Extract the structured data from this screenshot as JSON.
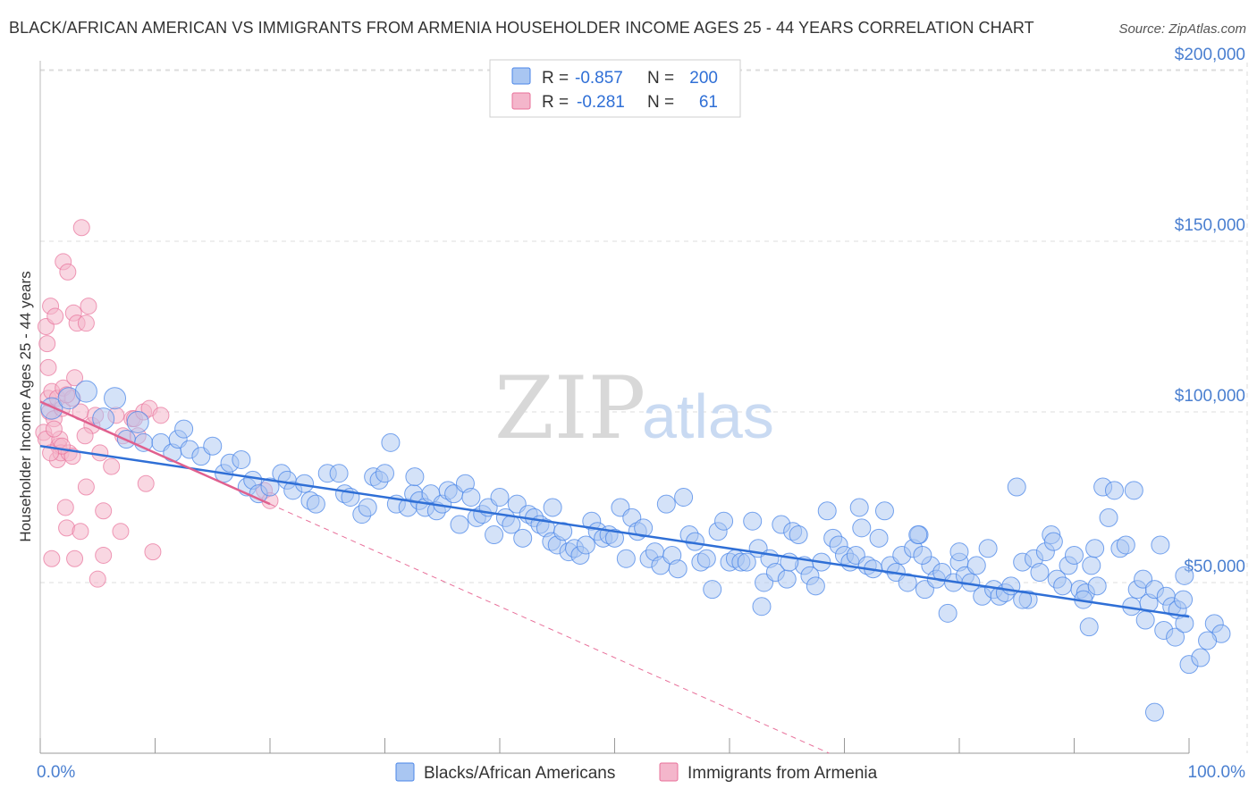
{
  "title": "BLACK/AFRICAN AMERICAN VS IMMIGRANTS FROM ARMENIA HOUSEHOLDER INCOME AGES 25 - 44 YEARS CORRELATION CHART",
  "source": "Source: ZipAtlas.com",
  "watermark": {
    "zip": "ZIP",
    "atlas": "atlas"
  },
  "colors": {
    "blue": "#4a86e8",
    "blue_fill": "#a9c6f2",
    "pink": "#e8709a",
    "pink_fill": "#f4b6cb",
    "grid": "#dcdcdc",
    "axis_text": "#4a7fd0"
  },
  "legend": {
    "rows": [
      {
        "r_label": "R =",
        "r_value": "-0.857",
        "n_label": "N =",
        "n_value": "200"
      },
      {
        "r_label": "R =",
        "r_value": "-0.281",
        "n_label": "N =",
        "n_value": "61"
      }
    ]
  },
  "bottom_legend": [
    "Blacks/African Americans",
    "Immigrants from Armenia"
  ],
  "chart_data": {
    "type": "scatter",
    "title": "BLACK/AFRICAN AMERICAN VS IMMIGRANTS FROM ARMENIA HOUSEHOLDER INCOME AGES 25 - 44 YEARS CORRELATION CHART",
    "xlabel": "",
    "ylabel": "Householder Income Ages 25 - 44 years",
    "xlim": [
      0,
      100
    ],
    "ylim": [
      0,
      210000
    ],
    "x_tick_labels": [
      "0.0%",
      "100.0%"
    ],
    "y_ticks": [
      50000,
      100000,
      150000,
      200000
    ],
    "y_tick_labels": [
      "$50,000",
      "$100,000",
      "$150,000",
      "$200,000"
    ],
    "grid": true,
    "legend_position": "top-center",
    "series": [
      {
        "name": "Blacks/African Americans",
        "color": "#4a86e8",
        "trend": {
          "x": [
            0,
            100
          ],
          "y": [
            90000,
            40000
          ]
        },
        "points": [
          [
            1.0,
            101000
          ],
          [
            2.5,
            104000
          ],
          [
            4.0,
            106000
          ],
          [
            5.5,
            98000
          ],
          [
            6.5,
            104000
          ],
          [
            7.5,
            92000
          ],
          [
            8.5,
            97000
          ],
          [
            9.0,
            91000
          ],
          [
            10.5,
            91000
          ],
          [
            11.5,
            88000
          ],
          [
            12.0,
            92000
          ],
          [
            13.0,
            89000
          ],
          [
            14.0,
            87000
          ],
          [
            15.0,
            90000
          ],
          [
            12.5,
            95000
          ],
          [
            16.0,
            82000
          ],
          [
            16.5,
            85000
          ],
          [
            17.5,
            86000
          ],
          [
            18.0,
            78000
          ],
          [
            18.5,
            80000
          ],
          [
            19.0,
            76000
          ],
          [
            20.0,
            78000
          ],
          [
            21.0,
            82000
          ],
          [
            21.5,
            80000
          ],
          [
            22.0,
            77000
          ],
          [
            23.0,
            79000
          ],
          [
            23.5,
            74000
          ],
          [
            24.0,
            73000
          ],
          [
            25.0,
            82000
          ],
          [
            26.0,
            82000
          ],
          [
            26.5,
            76000
          ],
          [
            27.0,
            75000
          ],
          [
            28.0,
            70000
          ],
          [
            28.5,
            72000
          ],
          [
            29.0,
            81000
          ],
          [
            29.5,
            80000
          ],
          [
            30.0,
            82000
          ],
          [
            30.5,
            91000
          ],
          [
            31.0,
            73000
          ],
          [
            32.0,
            72000
          ],
          [
            32.5,
            76000
          ],
          [
            33.0,
            74000
          ],
          [
            33.5,
            72000
          ],
          [
            34.0,
            76000
          ],
          [
            34.5,
            71000
          ],
          [
            35.0,
            73000
          ],
          [
            35.5,
            77000
          ],
          [
            36.0,
            76000
          ],
          [
            36.5,
            67000
          ],
          [
            37.0,
            79000
          ],
          [
            37.5,
            75000
          ],
          [
            38.0,
            69000
          ],
          [
            38.5,
            70000
          ],
          [
            39.0,
            72000
          ],
          [
            39.5,
            64000
          ],
          [
            40.0,
            75000
          ],
          [
            40.5,
            69000
          ],
          [
            41.0,
            67000
          ],
          [
            41.5,
            73000
          ],
          [
            42.0,
            63000
          ],
          [
            42.5,
            70000
          ],
          [
            43.0,
            69000
          ],
          [
            43.5,
            67000
          ],
          [
            44.0,
            66000
          ],
          [
            44.5,
            62000
          ],
          [
            45.0,
            61000
          ],
          [
            45.5,
            65000
          ],
          [
            46.0,
            59000
          ],
          [
            46.5,
            60000
          ],
          [
            47.0,
            58000
          ],
          [
            47.5,
            61000
          ],
          [
            48.0,
            68000
          ],
          [
            48.5,
            65000
          ],
          [
            49.0,
            63000
          ],
          [
            49.5,
            64000
          ],
          [
            50.0,
            63000
          ],
          [
            50.5,
            72000
          ],
          [
            51.0,
            57000
          ],
          [
            51.5,
            69000
          ],
          [
            52.0,
            65000
          ],
          [
            52.5,
            66000
          ],
          [
            53.0,
            57000
          ],
          [
            53.5,
            59000
          ],
          [
            54.0,
            55000
          ],
          [
            54.5,
            73000
          ],
          [
            55.0,
            58000
          ],
          [
            55.5,
            54000
          ],
          [
            56.0,
            75000
          ],
          [
            56.5,
            64000
          ],
          [
            57.0,
            62000
          ],
          [
            57.5,
            56000
          ],
          [
            58.0,
            57000
          ],
          [
            58.5,
            48000
          ],
          [
            59.0,
            65000
          ],
          [
            59.5,
            68000
          ],
          [
            60.0,
            56000
          ],
          [
            60.5,
            57000
          ],
          [
            61.0,
            56000
          ],
          [
            61.5,
            56000
          ],
          [
            62.0,
            68000
          ],
          [
            62.5,
            60000
          ],
          [
            63.0,
            50000
          ],
          [
            63.5,
            57000
          ],
          [
            64.0,
            53000
          ],
          [
            64.5,
            67000
          ],
          [
            65.0,
            51000
          ],
          [
            65.5,
            65000
          ],
          [
            66.0,
            64000
          ],
          [
            66.5,
            55000
          ],
          [
            67.0,
            52000
          ],
          [
            67.5,
            49000
          ],
          [
            68.0,
            56000
          ],
          [
            68.5,
            71000
          ],
          [
            69.0,
            63000
          ],
          [
            69.5,
            61000
          ],
          [
            70.0,
            58000
          ],
          [
            70.5,
            56000
          ],
          [
            71.0,
            58000
          ],
          [
            71.5,
            66000
          ],
          [
            72.0,
            55000
          ],
          [
            72.5,
            54000
          ],
          [
            73.0,
            63000
          ],
          [
            73.5,
            71000
          ],
          [
            74.0,
            55000
          ],
          [
            74.5,
            53000
          ],
          [
            75.0,
            58000
          ],
          [
            75.5,
            50000
          ],
          [
            76.0,
            60000
          ],
          [
            76.5,
            64000
          ],
          [
            77.0,
            48000
          ],
          [
            77.5,
            55000
          ],
          [
            78.0,
            51000
          ],
          [
            78.5,
            53000
          ],
          [
            79.0,
            41000
          ],
          [
            79.5,
            50000
          ],
          [
            80.0,
            56000
          ],
          [
            80.5,
            52000
          ],
          [
            81.0,
            50000
          ],
          [
            81.5,
            55000
          ],
          [
            82.0,
            46000
          ],
          [
            82.5,
            60000
          ],
          [
            83.0,
            48000
          ],
          [
            83.5,
            46000
          ],
          [
            84.0,
            47000
          ],
          [
            84.5,
            49000
          ],
          [
            85.0,
            78000
          ],
          [
            85.5,
            56000
          ],
          [
            86.0,
            45000
          ],
          [
            86.5,
            57000
          ],
          [
            87.0,
            53000
          ],
          [
            87.5,
            59000
          ],
          [
            88.0,
            64000
          ],
          [
            88.5,
            51000
          ],
          [
            89.0,
            49000
          ],
          [
            89.5,
            55000
          ],
          [
            90.0,
            58000
          ],
          [
            90.5,
            48000
          ],
          [
            91.0,
            47000
          ],
          [
            91.5,
            55000
          ],
          [
            92.0,
            49000
          ],
          [
            92.5,
            78000
          ],
          [
            93.0,
            69000
          ],
          [
            93.5,
            77000
          ],
          [
            94.0,
            60000
          ],
          [
            94.5,
            61000
          ],
          [
            95.0,
            43000
          ],
          [
            95.5,
            48000
          ],
          [
            96.0,
            51000
          ],
          [
            96.5,
            44000
          ],
          [
            97.0,
            48000
          ],
          [
            97.5,
            61000
          ],
          [
            98.0,
            46000
          ],
          [
            98.5,
            43000
          ],
          [
            99.0,
            42000
          ],
          [
            99.5,
            45000
          ],
          [
            85.5,
            45000
          ],
          [
            91.8,
            60000
          ],
          [
            96.2,
            39000
          ],
          [
            97.8,
            36000
          ],
          [
            98.8,
            34000
          ],
          [
            99.6,
            38000
          ],
          [
            88.2,
            62000
          ],
          [
            90.8,
            45000
          ],
          [
            91.3,
            37000
          ],
          [
            100.0,
            26000
          ],
          [
            101.0,
            28000
          ],
          [
            102.2,
            38000
          ],
          [
            102.8,
            35000
          ],
          [
            101.6,
            33000
          ],
          [
            97.0,
            12000
          ],
          [
            80.0,
            59000
          ],
          [
            76.8,
            58000
          ],
          [
            76.4,
            64000
          ],
          [
            95.2,
            77000
          ],
          [
            62.8,
            43000
          ],
          [
            65.2,
            56000
          ],
          [
            71.3,
            72000
          ],
          [
            99.6,
            52000
          ],
          [
            44.6,
            72000
          ],
          [
            32.6,
            81000
          ]
        ]
      },
      {
        "name": "Immigrants from Armenia",
        "color": "#e8709a",
        "trend": {
          "x": [
            0,
            20
          ],
          "y": [
            103000,
            73000
          ]
        },
        "points": [
          [
            0.3,
            94000
          ],
          [
            0.5,
            92000
          ],
          [
            0.5,
            125000
          ],
          [
            0.6,
            120000
          ],
          [
            0.7,
            104000
          ],
          [
            0.7,
            113000
          ],
          [
            0.8,
            100000
          ],
          [
            0.9,
            131000
          ],
          [
            1.0,
            106000
          ],
          [
            1.0,
            57000
          ],
          [
            1.2,
            98000
          ],
          [
            1.3,
            128000
          ],
          [
            1.5,
            104000
          ],
          [
            1.5,
            86000
          ],
          [
            1.6,
            90000
          ],
          [
            1.7,
            92000
          ],
          [
            1.8,
            88000
          ],
          [
            1.9,
            101000
          ],
          [
            2.0,
            107000
          ],
          [
            2.0,
            144000
          ],
          [
            2.2,
            72000
          ],
          [
            2.3,
            66000
          ],
          [
            2.4,
            141000
          ],
          [
            2.5,
            88000
          ],
          [
            2.8,
            104000
          ],
          [
            2.9,
            129000
          ],
          [
            3.0,
            110000
          ],
          [
            3.0,
            57000
          ],
          [
            3.2,
            126000
          ],
          [
            3.5,
            100000
          ],
          [
            3.5,
            65000
          ],
          [
            3.6,
            154000
          ],
          [
            4.0,
            78000
          ],
          [
            4.0,
            126000
          ],
          [
            4.2,
            131000
          ],
          [
            4.5,
            96000
          ],
          [
            4.8,
            99000
          ],
          [
            5.0,
            51000
          ],
          [
            5.2,
            88000
          ],
          [
            5.5,
            71000
          ],
          [
            5.5,
            58000
          ],
          [
            6.2,
            84000
          ],
          [
            6.6,
            99000
          ],
          [
            7.0,
            65000
          ],
          [
            7.2,
            93000
          ],
          [
            8.0,
            98000
          ],
          [
            8.2,
            98000
          ],
          [
            8.5,
            93000
          ],
          [
            9.0,
            100000
          ],
          [
            9.2,
            79000
          ],
          [
            9.5,
            101000
          ],
          [
            9.8,
            59000
          ],
          [
            10.5,
            99000
          ],
          [
            19.5,
            77000
          ],
          [
            20.0,
            74000
          ],
          [
            2.3,
            105000
          ],
          [
            1.2,
            95000
          ],
          [
            2.8,
            87000
          ],
          [
            3.9,
            93000
          ],
          [
            1.9,
            90000
          ],
          [
            0.9,
            88000
          ]
        ]
      }
    ]
  }
}
